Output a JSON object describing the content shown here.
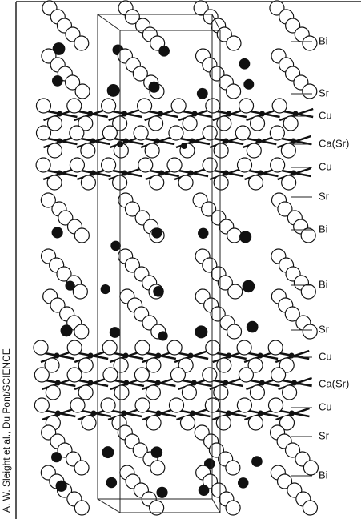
{
  "labels": [
    "Bi",
    "Sr",
    "Cu",
    "Ca(Sr)",
    "Cu",
    "Sr",
    "Bi",
    "Bi",
    "Sr",
    "Cu",
    "Ca(Sr)",
    "Cu",
    "Sr",
    "Bi"
  ],
  "credit": "A. W. Sleight et al., Du Pont/SCIENCE"
}
